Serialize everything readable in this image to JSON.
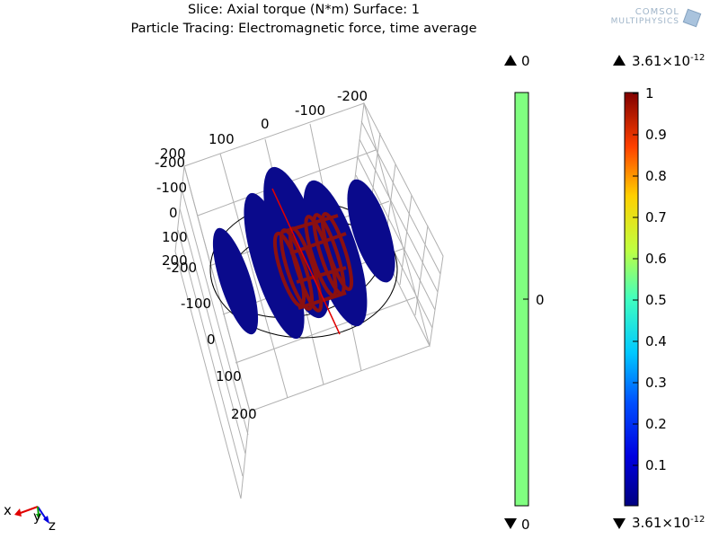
{
  "titles": {
    "line1": "Slice: Axial torque (N*m)  Surface: 1",
    "line2": "Particle Tracing: Electromagnetic force, time average"
  },
  "logo": {
    "line1": "COMSOL",
    "line2": "MULTIPHYSICS"
  },
  "chart_data": {
    "type": "heatmap",
    "description_axes": {
      "axis_ticks_top": [
        "-200",
        "-100",
        "0",
        "100",
        "200"
      ],
      "axis_ticks_left": [
        "-200",
        "-100",
        "0",
        "100",
        "200"
      ],
      "axis_ticks_bottom": [
        "-200",
        "-100",
        "0",
        "100",
        "200"
      ]
    },
    "color_legends": [
      {
        "name": "Slice: Axial torque (N*m)",
        "max_label": "0",
        "min_label": "0",
        "mid_label": "0",
        "range": [
          0,
          0
        ],
        "colormap": "uniform green"
      },
      {
        "name": "Surface: 1",
        "max_label": "3.61×10",
        "max_exp": "-12",
        "min_label": "3.61×10",
        "min_exp": "-12",
        "ticks": [
          "1",
          "0.9",
          "0.8",
          "0.7",
          "0.6",
          "0.5",
          "0.4",
          "0.3",
          "0.2",
          "0.1"
        ],
        "tick_values": [
          1,
          0.9,
          0.8,
          0.7,
          0.6,
          0.5,
          0.4,
          0.3,
          0.2,
          0.1
        ],
        "range": [
          0,
          1
        ],
        "colormap": "rainbow (dark blue to dark red)"
      }
    ],
    "triad": {
      "x": "x",
      "y": "y",
      "z": "z"
    }
  }
}
